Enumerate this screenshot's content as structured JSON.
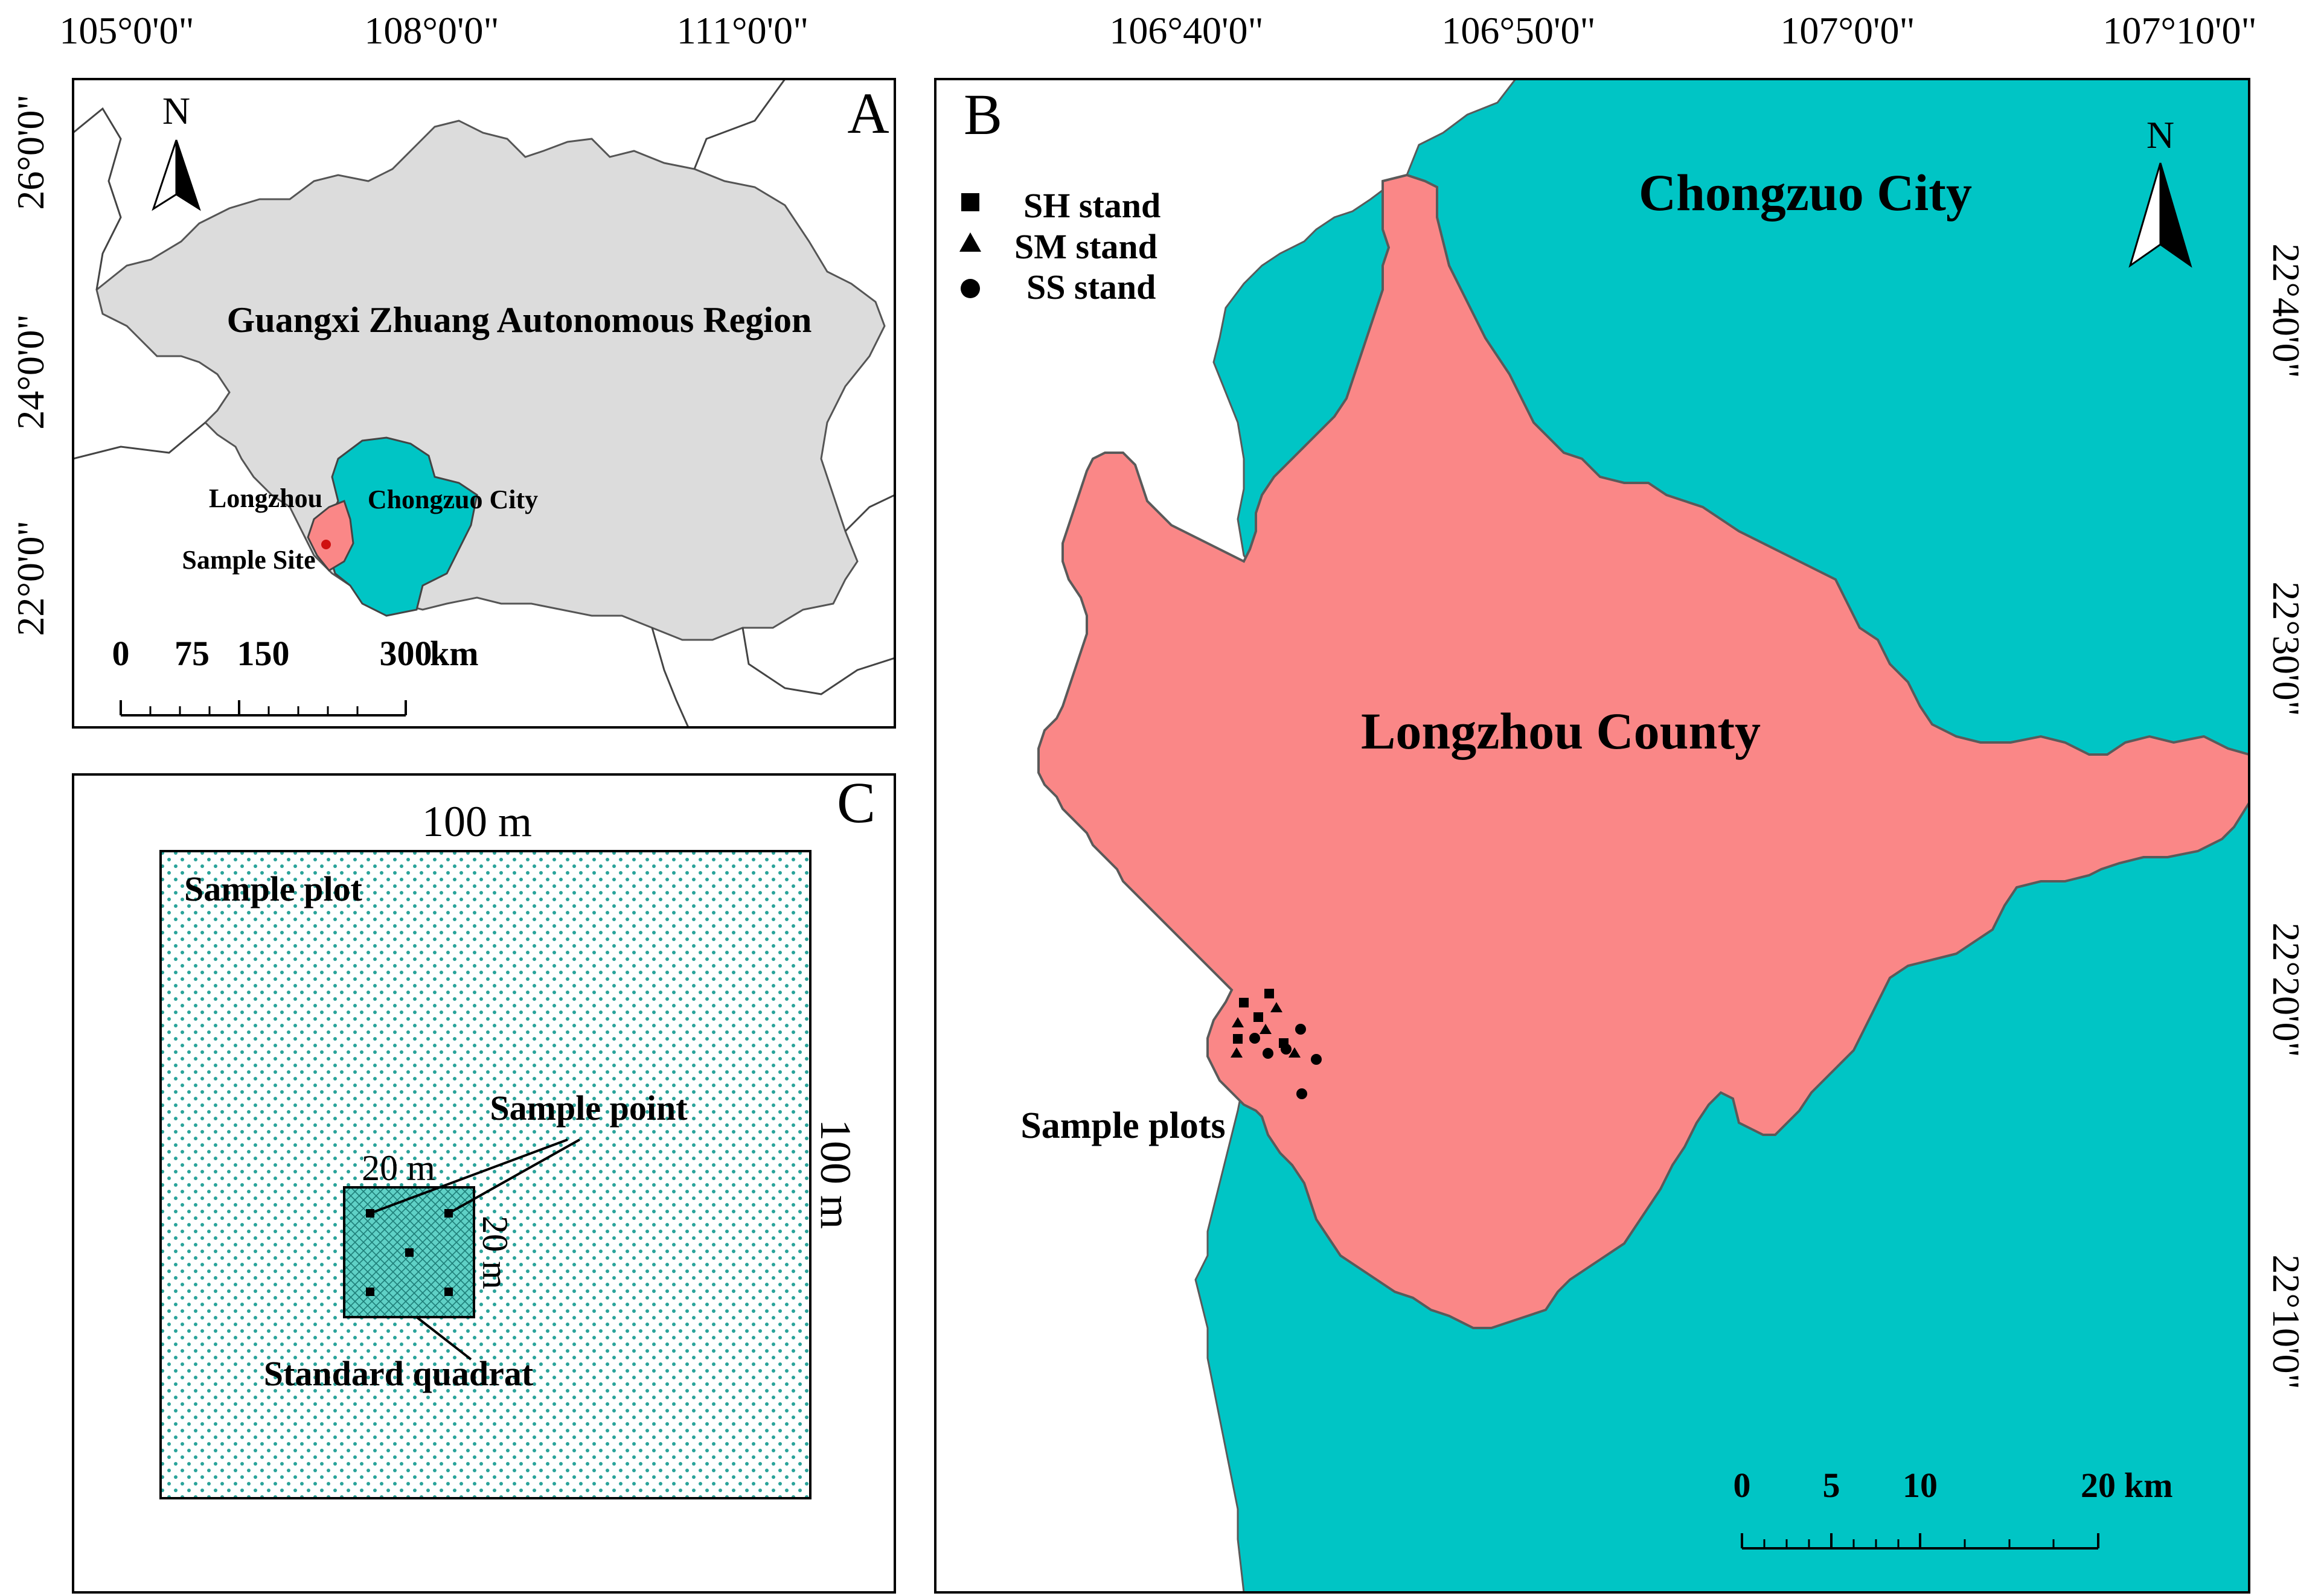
{
  "panel_a": {
    "letter": "A",
    "top_coords": [
      "105°0'0\"",
      "108°0'0\"",
      "111°0'0\""
    ],
    "left_coords": [
      "26°0'0\"",
      "24°0'0\"",
      "22°0'0\""
    ],
    "north": "N",
    "region_label": "Guangxi Zhuang Autonomous Region",
    "longzhou_label": "Longzhou",
    "city_label": "Chongzuo City",
    "site_label": "Sample Site",
    "scale": {
      "t0": "0",
      "t1": "75",
      "t2": "150",
      "t3": "300",
      "unit": "km"
    },
    "colors": {
      "region": "#dcdcdc",
      "city": "#00c5c5",
      "county": "#fa8787",
      "site": "#d01010"
    }
  },
  "panel_b": {
    "letter": "B",
    "top_coords": [
      "106°40'0\"",
      "106°50'0\"",
      "107°0'0\"",
      "107°10'0\""
    ],
    "right_coords": [
      "22°40'0\"",
      "22°30'0\"",
      "22°20'0\"",
      "22°10'0\""
    ],
    "north": "N",
    "legend": [
      {
        "symbol": "square",
        "label": "SH stand"
      },
      {
        "symbol": "triangle",
        "label": "SM stand"
      },
      {
        "symbol": "circle",
        "label": "SS stand"
      }
    ],
    "city_label": "Chongzuo City",
    "county_label": "Longzhou County",
    "plots_label": "Sample plots",
    "scale": {
      "t0": "0",
      "t1": "5",
      "t2": "10",
      "t3": "20",
      "unit": "km"
    },
    "colors": {
      "city": "#00c5c5",
      "county": "#fa8787",
      "outside": "#ffffff"
    }
  },
  "panel_c": {
    "letter": "C",
    "top_dim": "100 m",
    "side_dim": "100 m",
    "plot_label": "Sample plot",
    "point_label": "Sample point",
    "quad_top": "20 m",
    "quad_side": "20 m",
    "quadrat_label": "Standard quadrat",
    "colors": {
      "dots": "#2aa39a",
      "quadrat": "#5fd1c6"
    }
  }
}
